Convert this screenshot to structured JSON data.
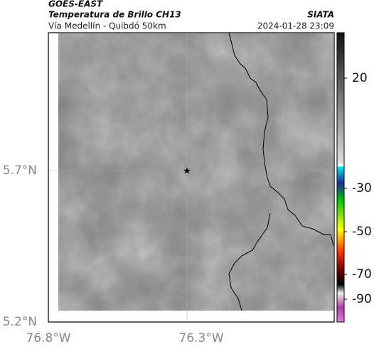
{
  "header": {
    "product": "GOES-EAST",
    "variable": "Temperatura de Brillo CH13",
    "source": "SIATA",
    "region": "Vía Medellín - Quibdó 50km",
    "datetime": "2024-01-28 23:09"
  },
  "map": {
    "lat_ticks": [
      "5.7°N",
      "5.2°N"
    ],
    "lon_ticks": [
      "76.8°W",
      "76.3°W"
    ]
  },
  "colorbar": {
    "ticks": [
      20,
      -30,
      -50,
      -70,
      -90
    ]
  }
}
